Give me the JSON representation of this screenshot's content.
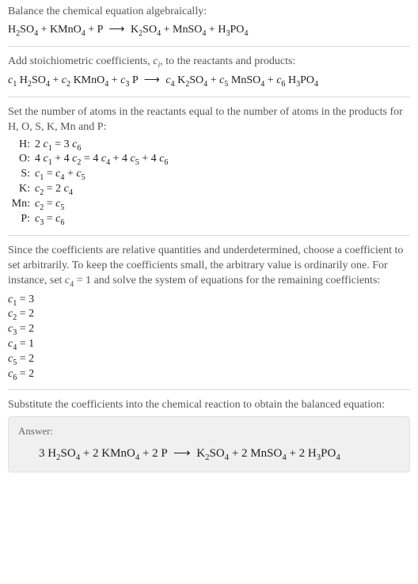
{
  "step1_heading": "Balance the chemical equation algebraically:",
  "input_equation": "H<sub>2</sub>SO<sub>4</sub> + KMnO<sub>4</sub> + P <span class=\"arrow\">⟶</span> K<sub>2</sub>SO<sub>4</sub> + MnSO<sub>4</sub> + H<sub>3</sub>PO<sub>4</sub>",
  "step2_heading": "Add stoichiometric coefficients, <span class=\"italic\">c<sub>i</sub></span>, to the reactants and products:",
  "coeff_equation": "<span class=\"italic\">c</span><sub>1</sub> H<sub>2</sub>SO<sub>4</sub> + <span class=\"italic\">c</span><sub>2</sub> KMnO<sub>4</sub> + <span class=\"italic\">c</span><sub>3</sub> P <span class=\"arrow\">⟶</span> <span class=\"italic\">c</span><sub>4</sub> K<sub>2</sub>SO<sub>4</sub> + <span class=\"italic\">c</span><sub>5</sub> MnSO<sub>4</sub> + <span class=\"italic\">c</span><sub>6</sub> H<sub>3</sub>PO<sub>4</sub>",
  "step3_heading": "Set the number of atoms in the reactants equal to the number of atoms in the products for H, O, S, K, Mn and P:",
  "atom_rows": [
    {
      "el": "H:",
      "eq": "2 <span class=\"italic\">c</span><sub>1</sub> = 3 <span class=\"italic\">c</span><sub>6</sub>"
    },
    {
      "el": "O:",
      "eq": "4 <span class=\"italic\">c</span><sub>1</sub> + 4 <span class=\"italic\">c</span><sub>2</sub> = 4 <span class=\"italic\">c</span><sub>4</sub> + 4 <span class=\"italic\">c</span><sub>5</sub> + 4 <span class=\"italic\">c</span><sub>6</sub>"
    },
    {
      "el": "S:",
      "eq": "<span class=\"italic\">c</span><sub>1</sub> = <span class=\"italic\">c</span><sub>4</sub> + <span class=\"italic\">c</span><sub>5</sub>"
    },
    {
      "el": "K:",
      "eq": "<span class=\"italic\">c</span><sub>2</sub> = 2 <span class=\"italic\">c</span><sub>4</sub>"
    },
    {
      "el": "Mn:",
      "eq": "<span class=\"italic\">c</span><sub>2</sub> = <span class=\"italic\">c</span><sub>5</sub>"
    },
    {
      "el": "P:",
      "eq": "<span class=\"italic\">c</span><sub>3</sub> = <span class=\"italic\">c</span><sub>6</sub>"
    }
  ],
  "step4_heading": "Since the coefficients are relative quantities and underdetermined, choose a coefficient to set arbitrarily. To keep the coefficients small, the arbitrary value is ordinarily one. For instance, set <span class=\"italic\">c</span><sub>4</sub> = 1 and solve the system of equations for the remaining coefficients:",
  "coeff_solutions": [
    "<span class=\"italic\">c</span><sub>1</sub> = 3",
    "<span class=\"italic\">c</span><sub>2</sub> = 2",
    "<span class=\"italic\">c</span><sub>3</sub> = 2",
    "<span class=\"italic\">c</span><sub>4</sub> = 1",
    "<span class=\"italic\">c</span><sub>5</sub> = 2",
    "<span class=\"italic\">c</span><sub>6</sub> = 2"
  ],
  "step5_heading": "Substitute the coefficients into the chemical reaction to obtain the balanced equation:",
  "answer_label": "Answer:",
  "answer_equation": "3 H<sub>2</sub>SO<sub>4</sub> + 2 KMnO<sub>4</sub> + 2 P <span class=\"arrow\">⟶</span> K<sub>2</sub>SO<sub>4</sub> + 2 MnSO<sub>4</sub> + 2 H<sub>3</sub>PO<sub>4</sub>"
}
